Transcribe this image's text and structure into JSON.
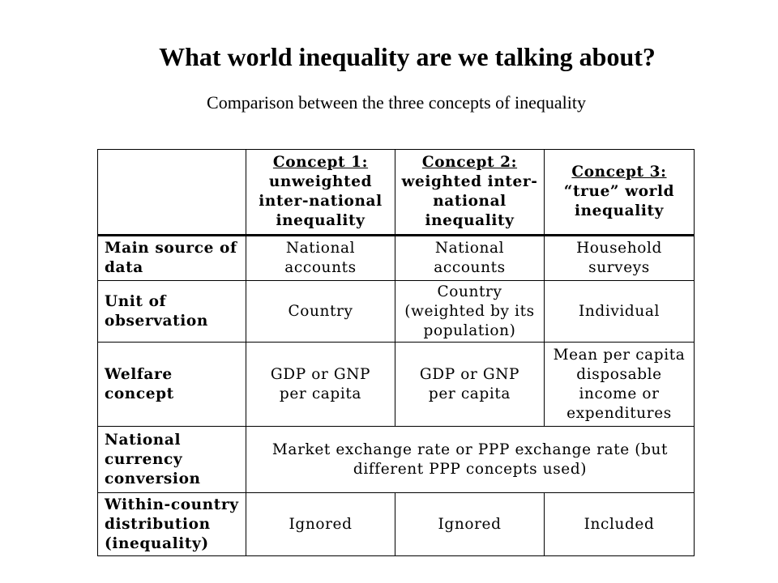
{
  "slide": {
    "title": "What world inequality are we talking about?",
    "subtitle": "Comparison between the three concepts of inequality"
  },
  "table": {
    "corner": "",
    "columns": [
      {
        "heading": "Concept 1:",
        "description": "unweighted\ninter-national\ninequality"
      },
      {
        "heading": "Concept 2:",
        "description": "weighted inter-\nnational\ninequality"
      },
      {
        "heading": "Concept 3:",
        "description": "“true” world\ninequality"
      }
    ],
    "rows": [
      {
        "label": "Main source of\ndata",
        "cells": [
          "National\naccounts",
          "National\naccounts",
          "Household\nsurveys"
        ]
      },
      {
        "label": "Unit of\nobservation",
        "cells": [
          "Country",
          "Country\n(weighted by its\npopulation)",
          "Individual"
        ]
      },
      {
        "label": "Welfare\nconcept",
        "cells": [
          "GDP or GNP\nper capita",
          "GDP or GNP\nper capita",
          "Mean per capita\ndisposable\nincome or\nexpenditures"
        ]
      },
      {
        "label": "National\ncurrency\nconversion",
        "merged_cell": "Market exchange rate or PPP exchange rate (but\ndifferent PPP concepts used)"
      },
      {
        "label": "Within-country\ndistribution\n(inequality)",
        "cells": [
          "Ignored",
          "Ignored",
          "Included"
        ]
      }
    ]
  }
}
